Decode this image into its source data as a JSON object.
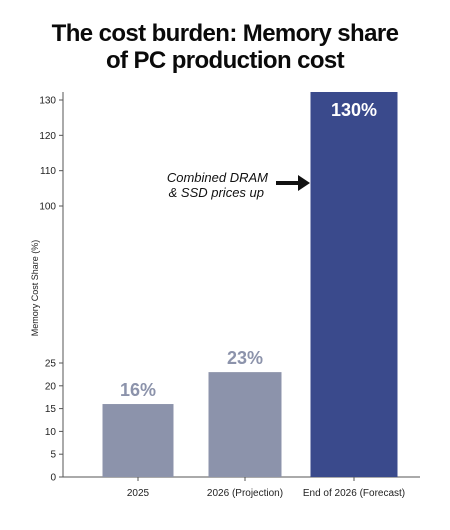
{
  "chart_data": {
    "type": "bar",
    "title_lines": [
      "The cost burden: Memory share",
      "of PC production cost"
    ],
    "ylabel": "Memory Cost Share (%)",
    "xlabel": "",
    "categories": [
      "2025",
      "2026 (Projection)",
      "End of 2026 (Forecast)"
    ],
    "values": [
      16,
      23,
      130
    ],
    "data_labels": [
      "16%",
      "23%",
      "130%"
    ],
    "yticks": [
      0,
      5,
      10,
      15,
      20,
      25,
      100,
      110,
      120,
      130
    ],
    "y_axis_break": [
      25,
      100
    ],
    "ylim": [
      0,
      130
    ],
    "annotation": {
      "lines": [
        "Combined DRAM",
        "& SSD prices up"
      ],
      "arrow": "right"
    },
    "grid": false,
    "legend": "none",
    "colors": {
      "bar_muted": "#8c93ab",
      "bar_highlight": "#3a4a8c",
      "label_muted": "#8c93ab",
      "label_highlight": "#ffffff",
      "axis": "#555555"
    }
  }
}
